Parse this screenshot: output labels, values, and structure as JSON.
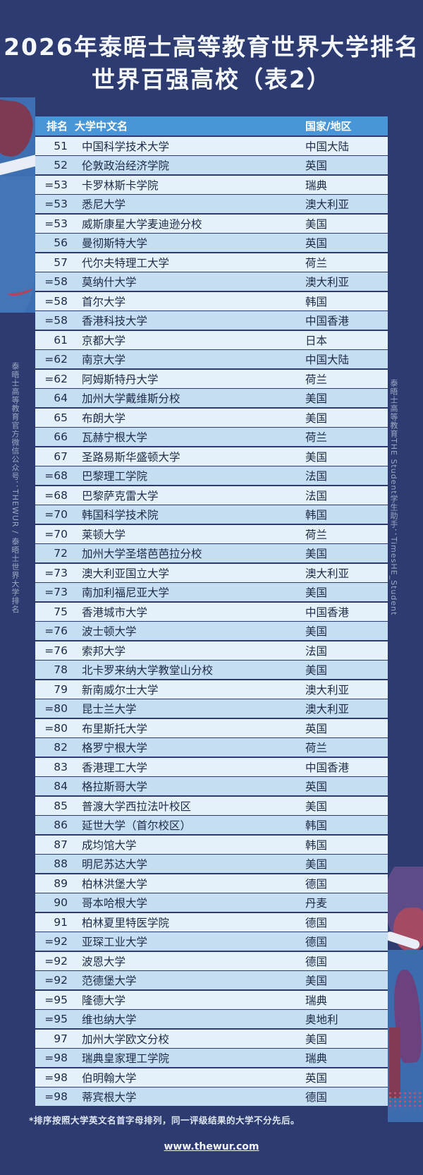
{
  "title": {
    "line1": "2026年泰晤士高等教育世界大学排名",
    "line2": "世界百强高校（表2）"
  },
  "side_notes": {
    "left": "泰晤士高等教育官方微信公众号：THEWUR / 泰晤士世界大学排名",
    "right": "泰晤士高等教育THE Student学生助手：TimesHE_Student"
  },
  "table": {
    "headers": {
      "rank": "排名",
      "name": "大学中文名",
      "country": "国家/地区"
    },
    "rows": [
      {
        "rank": "51",
        "name": "中国科学技术大学",
        "country": "中国大陆"
      },
      {
        "rank": "52",
        "name": "伦敦政治经济学院",
        "country": "英国"
      },
      {
        "rank": "=53",
        "name": "卡罗林斯卡学院",
        "country": "瑞典"
      },
      {
        "rank": "=53",
        "name": "悉尼大学",
        "country": "澳大利亚"
      },
      {
        "rank": "=53",
        "name": "威斯康星大学麦迪逊分校",
        "country": "美国"
      },
      {
        "rank": "56",
        "name": "曼彻斯特大学",
        "country": "英国"
      },
      {
        "rank": "57",
        "name": "代尔夫特理工大学",
        "country": "荷兰"
      },
      {
        "rank": "=58",
        "name": "莫纳什大学",
        "country": "澳大利亚"
      },
      {
        "rank": "=58",
        "name": "首尔大学",
        "country": "韩国"
      },
      {
        "rank": "=58",
        "name": "香港科技大学",
        "country": "中国香港"
      },
      {
        "rank": "61",
        "name": "京都大学",
        "country": "日本"
      },
      {
        "rank": "=62",
        "name": "南京大学",
        "country": "中国大陆"
      },
      {
        "rank": "=62",
        "name": "阿姆斯特丹大学",
        "country": "荷兰"
      },
      {
        "rank": "64",
        "name": "加州大学戴维斯分校",
        "country": "美国"
      },
      {
        "rank": "65",
        "name": "布朗大学",
        "country": "美国"
      },
      {
        "rank": "66",
        "name": "瓦赫宁根大学",
        "country": "荷兰"
      },
      {
        "rank": "67",
        "name": "圣路易斯华盛顿大学",
        "country": "美国"
      },
      {
        "rank": "=68",
        "name": "巴黎理工学院",
        "country": "法国"
      },
      {
        "rank": "=68",
        "name": "巴黎萨克雷大学",
        "country": "法国"
      },
      {
        "rank": "=70",
        "name": "韩国科学技术院",
        "country": "韩国"
      },
      {
        "rank": "=70",
        "name": "莱顿大学",
        "country": "荷兰"
      },
      {
        "rank": "72",
        "name": "加州大学圣塔芭芭拉分校",
        "country": "美国"
      },
      {
        "rank": "=73",
        "name": "澳大利亚国立大学",
        "country": "澳大利亚"
      },
      {
        "rank": "=73",
        "name": "南加利福尼亚大学",
        "country": "美国"
      },
      {
        "rank": "75",
        "name": "香港城市大学",
        "country": "中国香港"
      },
      {
        "rank": "=76",
        "name": "波士顿大学",
        "country": "美国"
      },
      {
        "rank": "=76",
        "name": "索邦大学",
        "country": "法国"
      },
      {
        "rank": "78",
        "name": "北卡罗来纳大学教堂山分校",
        "country": "美国"
      },
      {
        "rank": "79",
        "name": "新南威尔士大学",
        "country": "澳大利亚"
      },
      {
        "rank": "=80",
        "name": "昆士兰大学",
        "country": "澳大利亚"
      },
      {
        "rank": "=80",
        "name": "布里斯托大学",
        "country": "英国"
      },
      {
        "rank": "82",
        "name": "格罗宁根大学",
        "country": "荷兰"
      },
      {
        "rank": "83",
        "name": "香港理工大学",
        "country": "中国香港"
      },
      {
        "rank": "84",
        "name": "格拉斯哥大学",
        "country": "英国"
      },
      {
        "rank": "85",
        "name": "普渡大学西拉法叶校区",
        "country": "美国"
      },
      {
        "rank": "86",
        "name": "延世大学（首尔校区）",
        "country": "韩国"
      },
      {
        "rank": "87",
        "name": "成均馆大学",
        "country": "韩国"
      },
      {
        "rank": "88",
        "name": "明尼苏达大学",
        "country": "美国"
      },
      {
        "rank": "89",
        "name": "柏林洪堡大学",
        "country": "德国"
      },
      {
        "rank": "90",
        "name": "哥本哈根大学",
        "country": "丹麦"
      },
      {
        "rank": "91",
        "name": "柏林夏里特医学院",
        "country": "德国"
      },
      {
        "rank": "=92",
        "name": "亚琛工业大学",
        "country": "德国"
      },
      {
        "rank": "=92",
        "name": "波恩大学",
        "country": "德国"
      },
      {
        "rank": "=92",
        "name": "范德堡大学",
        "country": "美国"
      },
      {
        "rank": "=95",
        "name": "隆德大学",
        "country": "瑞典"
      },
      {
        "rank": "=95",
        "name": "维也纳大学",
        "country": "奥地利"
      },
      {
        "rank": "97",
        "name": "加州大学欧文分校",
        "country": "美国"
      },
      {
        "rank": "=98",
        "name": "瑞典皇家理工学院",
        "country": "瑞典"
      },
      {
        "rank": "=98",
        "name": "伯明翰大学",
        "country": "英国"
      },
      {
        "rank": "=98",
        "name": "蒂宾根大学",
        "country": "德国"
      }
    ]
  },
  "footnote": "*排序按照大学英文名首字母排列，同一评级结果的大学不分先后。",
  "url": "www.thewur.com",
  "colors": {
    "background": "#2d3b71",
    "header_bg": "#4896d7",
    "row_light": "#e4f1fb",
    "row_dark": "#c5def1",
    "row_text": "#1d2a49",
    "title_text": "#f5f9fd"
  }
}
